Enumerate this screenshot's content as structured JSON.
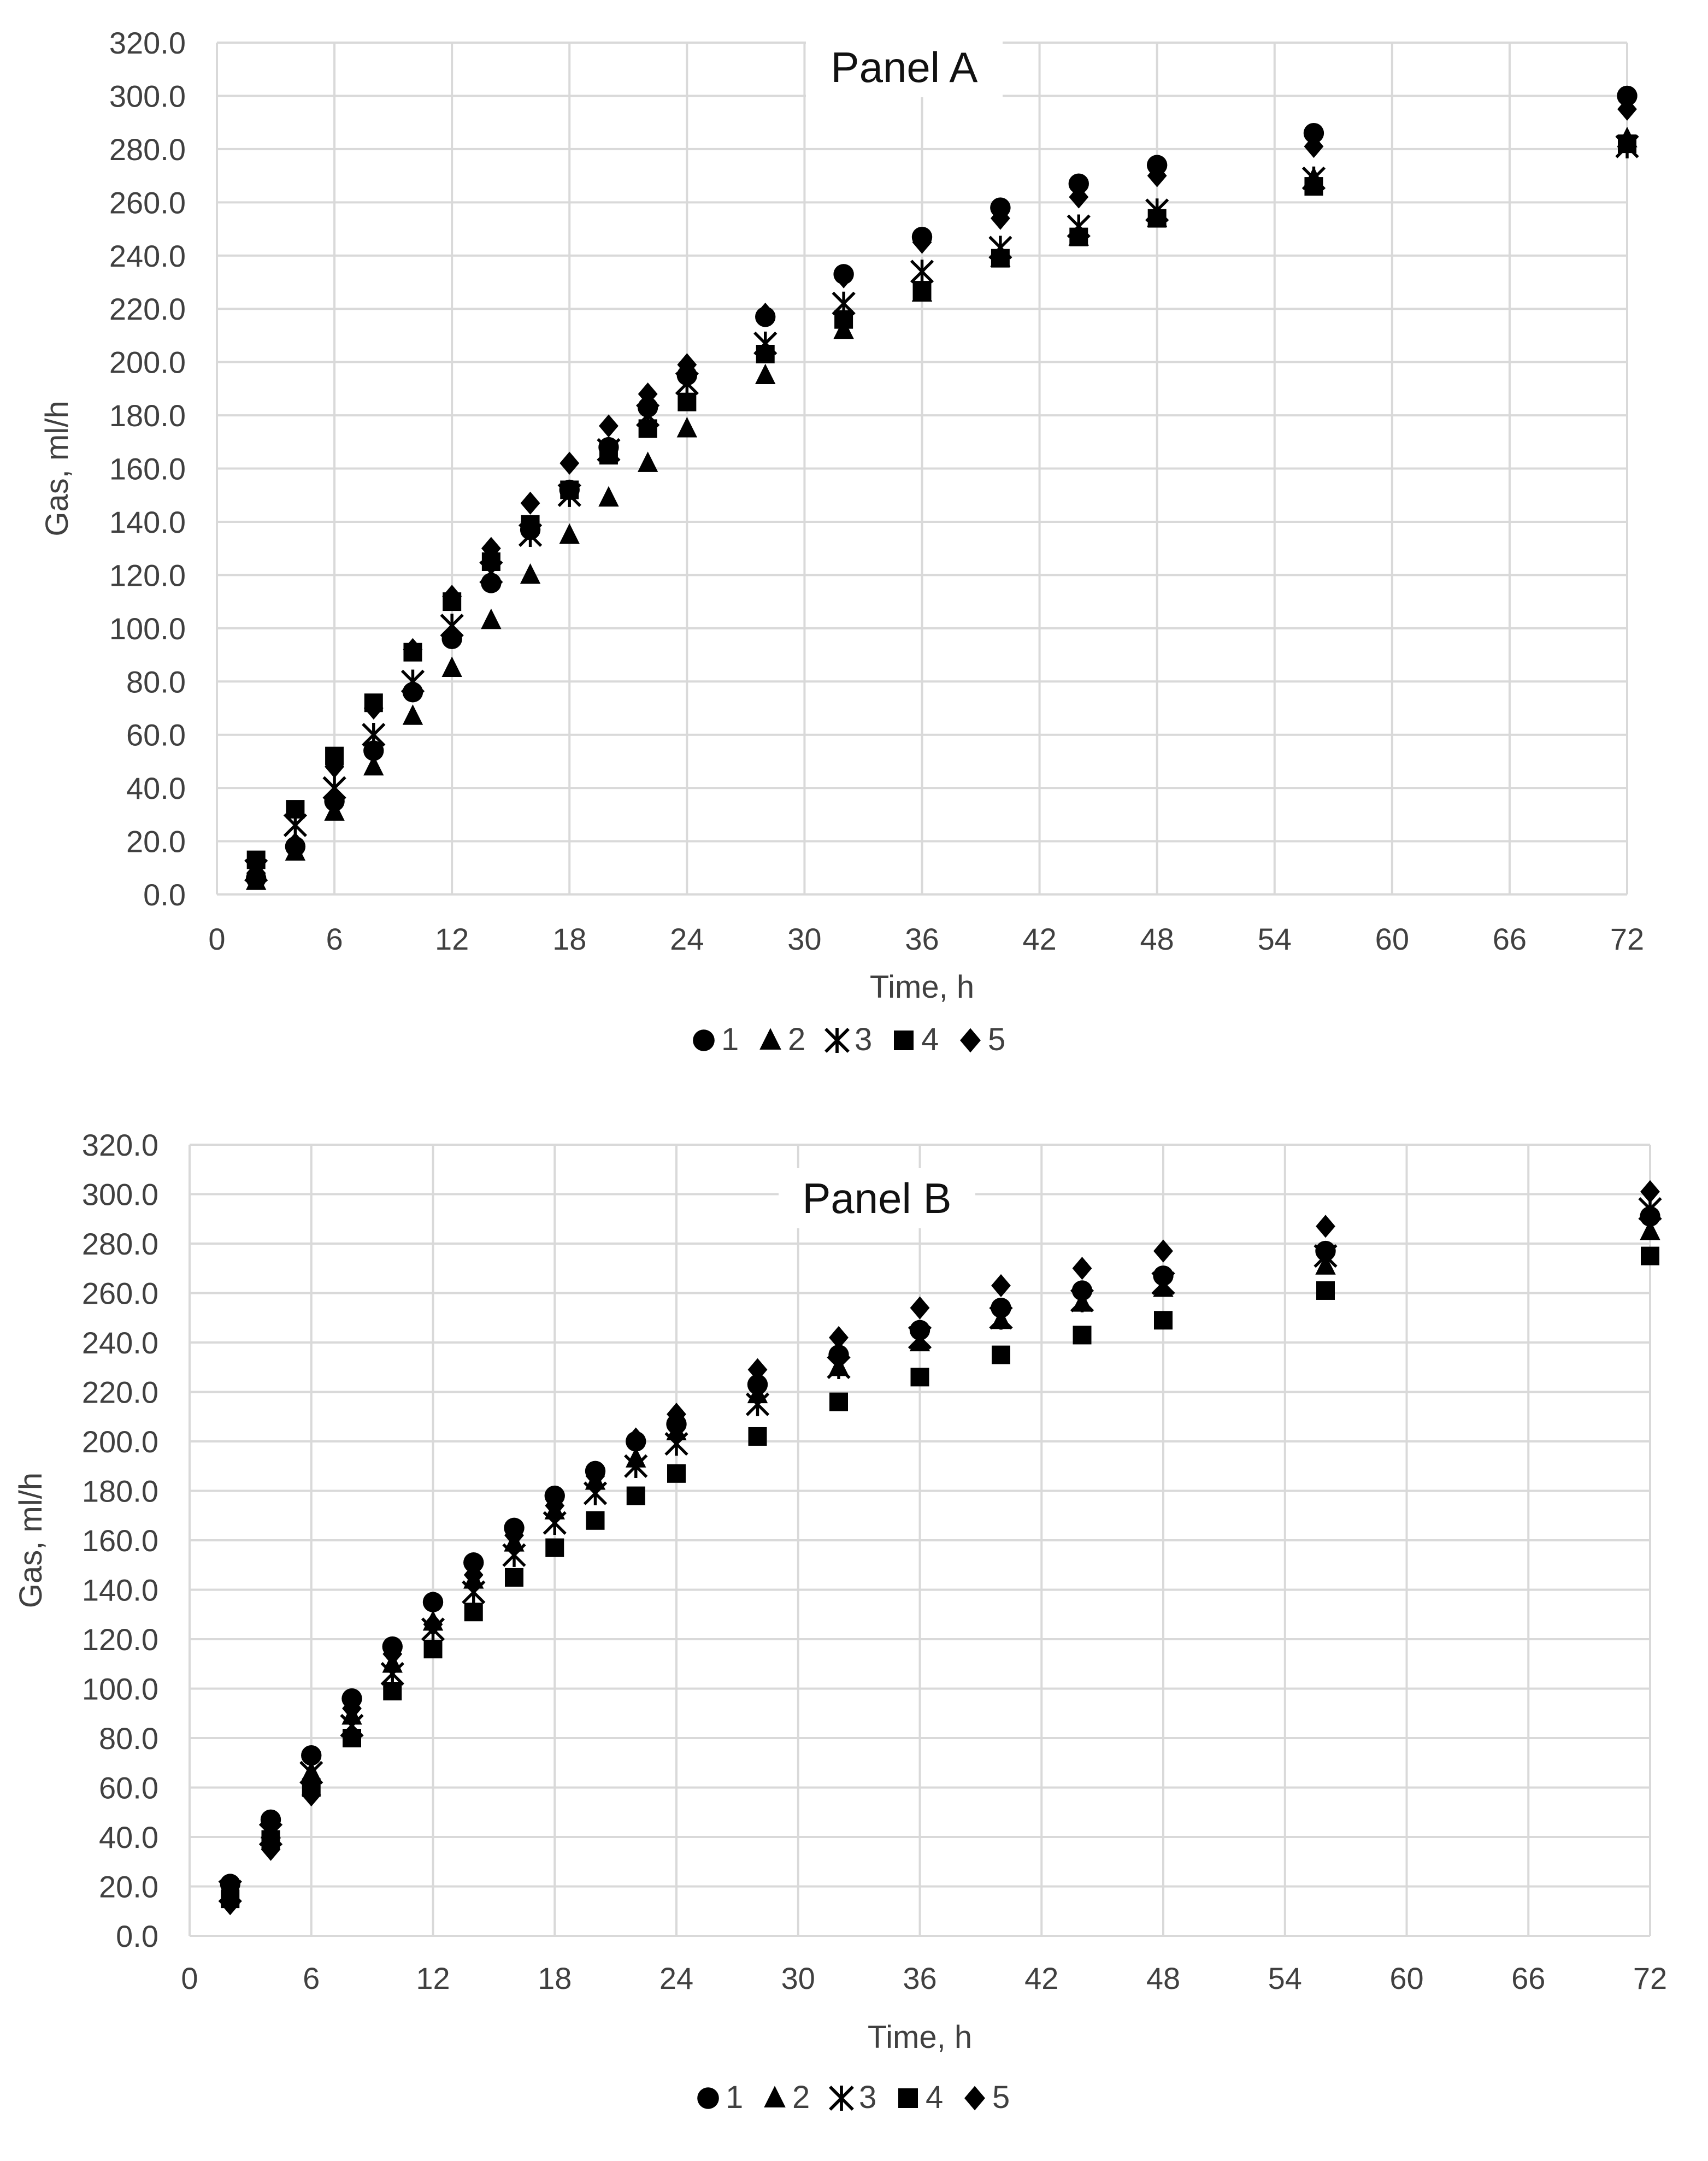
{
  "chart_data": [
    {
      "type": "scatter",
      "title": "Panel A",
      "xlabel": "Time, h",
      "ylabel": "Gas, ml/h",
      "xlim": [
        0,
        72
      ],
      "ylim": [
        0,
        320
      ],
      "x_ticks": [
        "0",
        "6",
        "12",
        "18",
        "24",
        "30",
        "36",
        "42",
        "48",
        "54",
        "60",
        "66",
        "72"
      ],
      "y_ticks": [
        "0.0",
        "20.0",
        "40.0",
        "60.0",
        "80.0",
        "100.0",
        "120.0",
        "140.0",
        "160.0",
        "180.0",
        "200.0",
        "220.0",
        "240.0",
        "260.0",
        "280.0",
        "300.0",
        "320.0"
      ],
      "grid": true,
      "legend_position": "bottom",
      "x": [
        2,
        4,
        6,
        8,
        10,
        12,
        14,
        16,
        18,
        20,
        22,
        24,
        28,
        32,
        36,
        40,
        44,
        48,
        56,
        72
      ],
      "series": [
        {
          "name": "1",
          "marker": "circle",
          "values": [
            6,
            18,
            35,
            54,
            76,
            96,
            117,
            137,
            152,
            168,
            183,
            195,
            217,
            233,
            247,
            258,
            267,
            274,
            286,
            300
          ]
        },
        {
          "name": "2",
          "marker": "triangle",
          "values": [
            5,
            16,
            31,
            48,
            67,
            85,
            103,
            120,
            135,
            149,
            162,
            175,
            195,
            212,
            226,
            239,
            247,
            254,
            269,
            284
          ]
        },
        {
          "name": "3",
          "marker": "asterisk",
          "values": [
            9,
            26,
            40,
            60,
            80,
            101,
            121,
            135,
            150,
            167,
            180,
            192,
            207,
            222,
            234,
            243,
            251,
            257,
            269,
            281
          ]
        },
        {
          "name": "4",
          "marker": "square",
          "values": [
            13,
            32,
            52,
            72,
            91,
            110,
            125,
            139,
            152,
            165,
            175,
            185,
            203,
            216,
            227,
            239,
            247,
            254,
            266,
            282
          ]
        },
        {
          "name": "5",
          "marker": "diamond",
          "values": [
            8,
            19,
            48,
            70,
            92,
            112,
            130,
            147,
            162,
            176,
            188,
            199,
            218,
            232,
            245,
            254,
            262,
            270,
            281,
            295
          ]
        }
      ]
    },
    {
      "type": "scatter",
      "title": "Panel B",
      "xlabel": "Time, h",
      "ylabel": "Gas, ml/h",
      "xlim": [
        0,
        72
      ],
      "ylim": [
        0,
        320
      ],
      "x_ticks": [
        "0",
        "6",
        "12",
        "18",
        "24",
        "30",
        "36",
        "42",
        "48",
        "54",
        "60",
        "66",
        "72"
      ],
      "y_ticks": [
        "0.0",
        "20.0",
        "40.0",
        "60.0",
        "80.0",
        "100.0",
        "120.0",
        "140.0",
        "160.0",
        "180.0",
        "200.0",
        "220.0",
        "240.0",
        "260.0",
        "280.0",
        "300.0",
        "320.0"
      ],
      "grid": true,
      "legend_position": "bottom",
      "x": [
        2,
        4,
        6,
        8,
        10,
        12,
        14,
        16,
        18,
        20,
        22,
        24,
        28,
        32,
        36,
        40,
        44,
        48,
        56,
        72
      ],
      "series": [
        {
          "name": "1",
          "marker": "circle",
          "values": [
            21,
            47,
            73,
            96,
            117,
            135,
            151,
            165,
            178,
            188,
            200,
            207,
            223,
            235,
            245,
            254,
            261,
            267,
            277,
            291
          ]
        },
        {
          "name": "2",
          "marker": "triangle",
          "values": [
            17,
            43,
            66,
            89,
            110,
            127,
            144,
            159,
            172,
            184,
            193,
            204,
            219,
            230,
            240,
            249,
            256,
            262,
            271,
            285
          ]
        },
        {
          "name": "3",
          "marker": "asterisk",
          "values": [
            18,
            41,
            66,
            85,
            106,
            124,
            139,
            154,
            167,
            179,
            190,
            199,
            215,
            230,
            242,
            250,
            257,
            264,
            275,
            294
          ]
        },
        {
          "name": "4",
          "marker": "square",
          "values": [
            15,
            39,
            60,
            80,
            99,
            116,
            131,
            145,
            157,
            168,
            178,
            187,
            202,
            216,
            226,
            235,
            243,
            249,
            261,
            275
          ]
        },
        {
          "name": "5",
          "marker": "diamond",
          "values": [
            13,
            35,
            57,
            92,
            114,
            126,
            146,
            162,
            174,
            186,
            201,
            211,
            229,
            242,
            254,
            263,
            270,
            277,
            287,
            301
          ]
        }
      ]
    }
  ]
}
